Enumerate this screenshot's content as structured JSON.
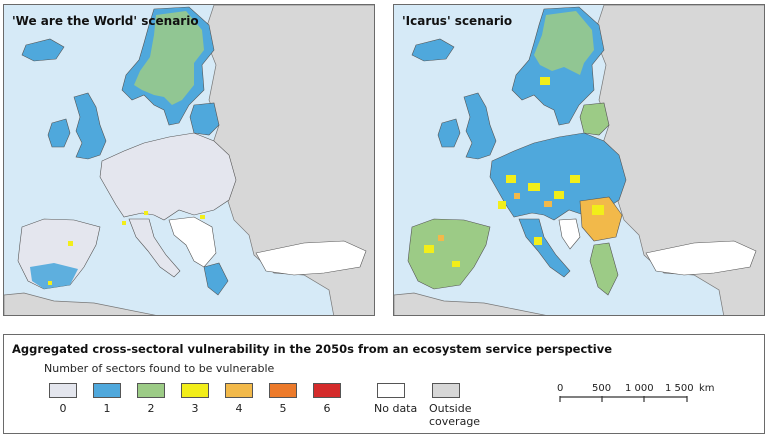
{
  "maps": {
    "left": {
      "title": "'We are the World' scenario"
    },
    "right": {
      "title": "'Icarus' scenario"
    }
  },
  "legend": {
    "title": "Aggregated cross-sectoral vulnerability in the 2050s from an ecosystem service perspective",
    "subtitle": "Number of sectors found to be vulnerable",
    "classes": [
      {
        "label": "0",
        "color": "#e4e6ee"
      },
      {
        "label": "1",
        "color": "#4fa8dc"
      },
      {
        "label": "2",
        "color": "#9ccb86"
      },
      {
        "label": "3",
        "color": "#f2ee1a"
      },
      {
        "label": "4",
        "color": "#f2b94a"
      },
      {
        "label": "5",
        "color": "#ec7a2a"
      },
      {
        "label": "6",
        "color": "#d42b2b"
      }
    ],
    "no_data": {
      "label": "No data",
      "color": "#ffffff"
    },
    "outside": {
      "label_line1": "Outside",
      "label_line2": "coverage",
      "color": "#d7d7d7"
    }
  },
  "scale": {
    "ticks": [
      "0",
      "500",
      "1 000",
      "1 500"
    ],
    "unit": "km"
  },
  "colors": {
    "sea": "#d6eaf7",
    "land_outside": "#d7d7d7",
    "no_data": "#ffffff",
    "borders": "#5a5a5a"
  }
}
